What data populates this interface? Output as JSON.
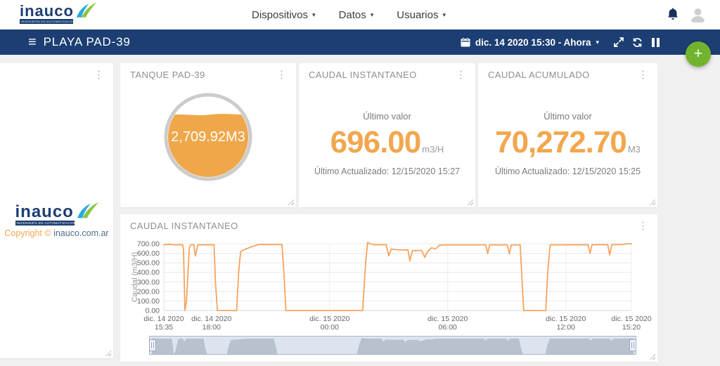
{
  "colors": {
    "navy": "#1c3e72",
    "orange": "#f2a74e",
    "green": "#72b32d",
    "line_orange": "#f7a35c",
    "gauge_fill": "#f0a74a",
    "navigator_bg": "#dde4f0",
    "navigator_area": "#b8c1ce"
  },
  "icons": {
    "hamburger": "≡",
    "caret_down": "▾",
    "kebab": "⋮",
    "plus": "+"
  },
  "header": {
    "logo_text": "inauco",
    "logo_tagline": "INGENIERÍA EN AUTOMATIZACIÓN Y CONTROL",
    "nav": [
      {
        "label": "Dispositivos"
      },
      {
        "label": "Datos"
      },
      {
        "label": "Usuarios"
      }
    ]
  },
  "toolbar": {
    "title": "PLAYA PAD-39",
    "date_range": "dic. 14 2020 15:30 - Ahora"
  },
  "watermark": {
    "logo_text": "inauco",
    "logo_tagline": "INGENIERÍA EN AUTOMATIZACIÓN Y CONTROL",
    "copyright_prefix": "Copyright © ",
    "copyright_link": "inauco.com.ar"
  },
  "cards": {
    "tank": {
      "title": "TANQUE PAD-39",
      "value": "2,709.92M3",
      "fill_percent": 78
    },
    "instant": {
      "title": "CAUDAL INSTANTANEO",
      "label": "Último valor",
      "value": "696.00",
      "unit": "m3/H",
      "updated": "Último Actualizado: 12/15/2020 15:27"
    },
    "accumulated": {
      "title": "CAUDAL ACUMULADO",
      "label": "Último valor",
      "value": "70,272.70",
      "unit": "M3",
      "updated": "Último Actualizado: 12/15/2020 15:25"
    }
  },
  "chart_card": {
    "title": "CAUDAL INSTANTANEO"
  },
  "chart_data": {
    "type": "line",
    "title": "CAUDAL INSTANTANEO",
    "ylabel": "Caudal (m3/H)",
    "ylim": [
      0,
      700
    ],
    "ytick_step": 100,
    "x_unit": "hours_since_2020-12-14T15:35",
    "xlim": [
      0,
      23.75
    ],
    "grid": true,
    "legend": false,
    "navigator": true,
    "x_ticks": [
      {
        "pos": 0,
        "line1": "dic. 14 2020",
        "line2": "15:35"
      },
      {
        "pos": 2.42,
        "line1": "dic. 14 2020",
        "line2": "18:00"
      },
      {
        "pos": 8.42,
        "line1": "dic. 15 2020",
        "line2": "00:00"
      },
      {
        "pos": 14.42,
        "line1": "dic. 15 2020",
        "line2": "06:00"
      },
      {
        "pos": 20.42,
        "line1": "dic. 15 2020",
        "line2": "12:00"
      },
      {
        "pos": 23.75,
        "line1": "dic. 15 2020",
        "line2": "15:20"
      }
    ],
    "series": [
      {
        "name": "Caudal (m3/H)",
        "color": "#f7a35c",
        "points": [
          [
            0,
            690
          ],
          [
            0.35,
            695
          ],
          [
            0.5,
            688
          ],
          [
            0.95,
            690
          ],
          [
            1.0,
            640
          ],
          [
            1.07,
            0
          ],
          [
            1.15,
            100
          ],
          [
            1.3,
            665
          ],
          [
            1.38,
            690
          ],
          [
            1.52,
            690
          ],
          [
            1.6,
            572
          ],
          [
            1.72,
            688
          ],
          [
            2.55,
            690
          ],
          [
            2.62,
            300
          ],
          [
            2.72,
            0
          ],
          [
            3.7,
            0
          ],
          [
            3.8,
            400
          ],
          [
            3.9,
            618
          ],
          [
            4.1,
            640
          ],
          [
            4.5,
            672
          ],
          [
            4.8,
            692
          ],
          [
            6.0,
            692
          ],
          [
            6.1,
            400
          ],
          [
            6.2,
            0
          ],
          [
            10.1,
            0
          ],
          [
            10.25,
            500
          ],
          [
            10.35,
            715
          ],
          [
            10.5,
            697
          ],
          [
            10.7,
            690
          ],
          [
            11.3,
            690
          ],
          [
            11.42,
            573
          ],
          [
            11.55,
            645
          ],
          [
            11.8,
            638
          ],
          [
            12.1,
            635
          ],
          [
            12.4,
            636
          ],
          [
            12.5,
            520
          ],
          [
            12.62,
            628
          ],
          [
            13.1,
            630
          ],
          [
            13.25,
            558
          ],
          [
            13.4,
            620
          ],
          [
            13.6,
            658
          ],
          [
            13.8,
            645
          ],
          [
            14.0,
            685
          ],
          [
            14.3,
            688
          ],
          [
            16.35,
            688
          ],
          [
            16.45,
            598
          ],
          [
            16.55,
            688
          ],
          [
            17.45,
            688
          ],
          [
            17.55,
            594
          ],
          [
            17.65,
            688
          ],
          [
            18.1,
            688
          ],
          [
            18.2,
            300
          ],
          [
            18.28,
            0
          ],
          [
            19.4,
            0
          ],
          [
            19.5,
            400
          ],
          [
            19.62,
            688
          ],
          [
            21.55,
            690
          ],
          [
            21.65,
            600
          ],
          [
            21.75,
            690
          ],
          [
            22.55,
            690
          ],
          [
            22.65,
            583
          ],
          [
            22.75,
            690
          ],
          [
            23.3,
            692
          ],
          [
            23.5,
            700
          ],
          [
            23.75,
            700
          ]
        ]
      }
    ]
  }
}
